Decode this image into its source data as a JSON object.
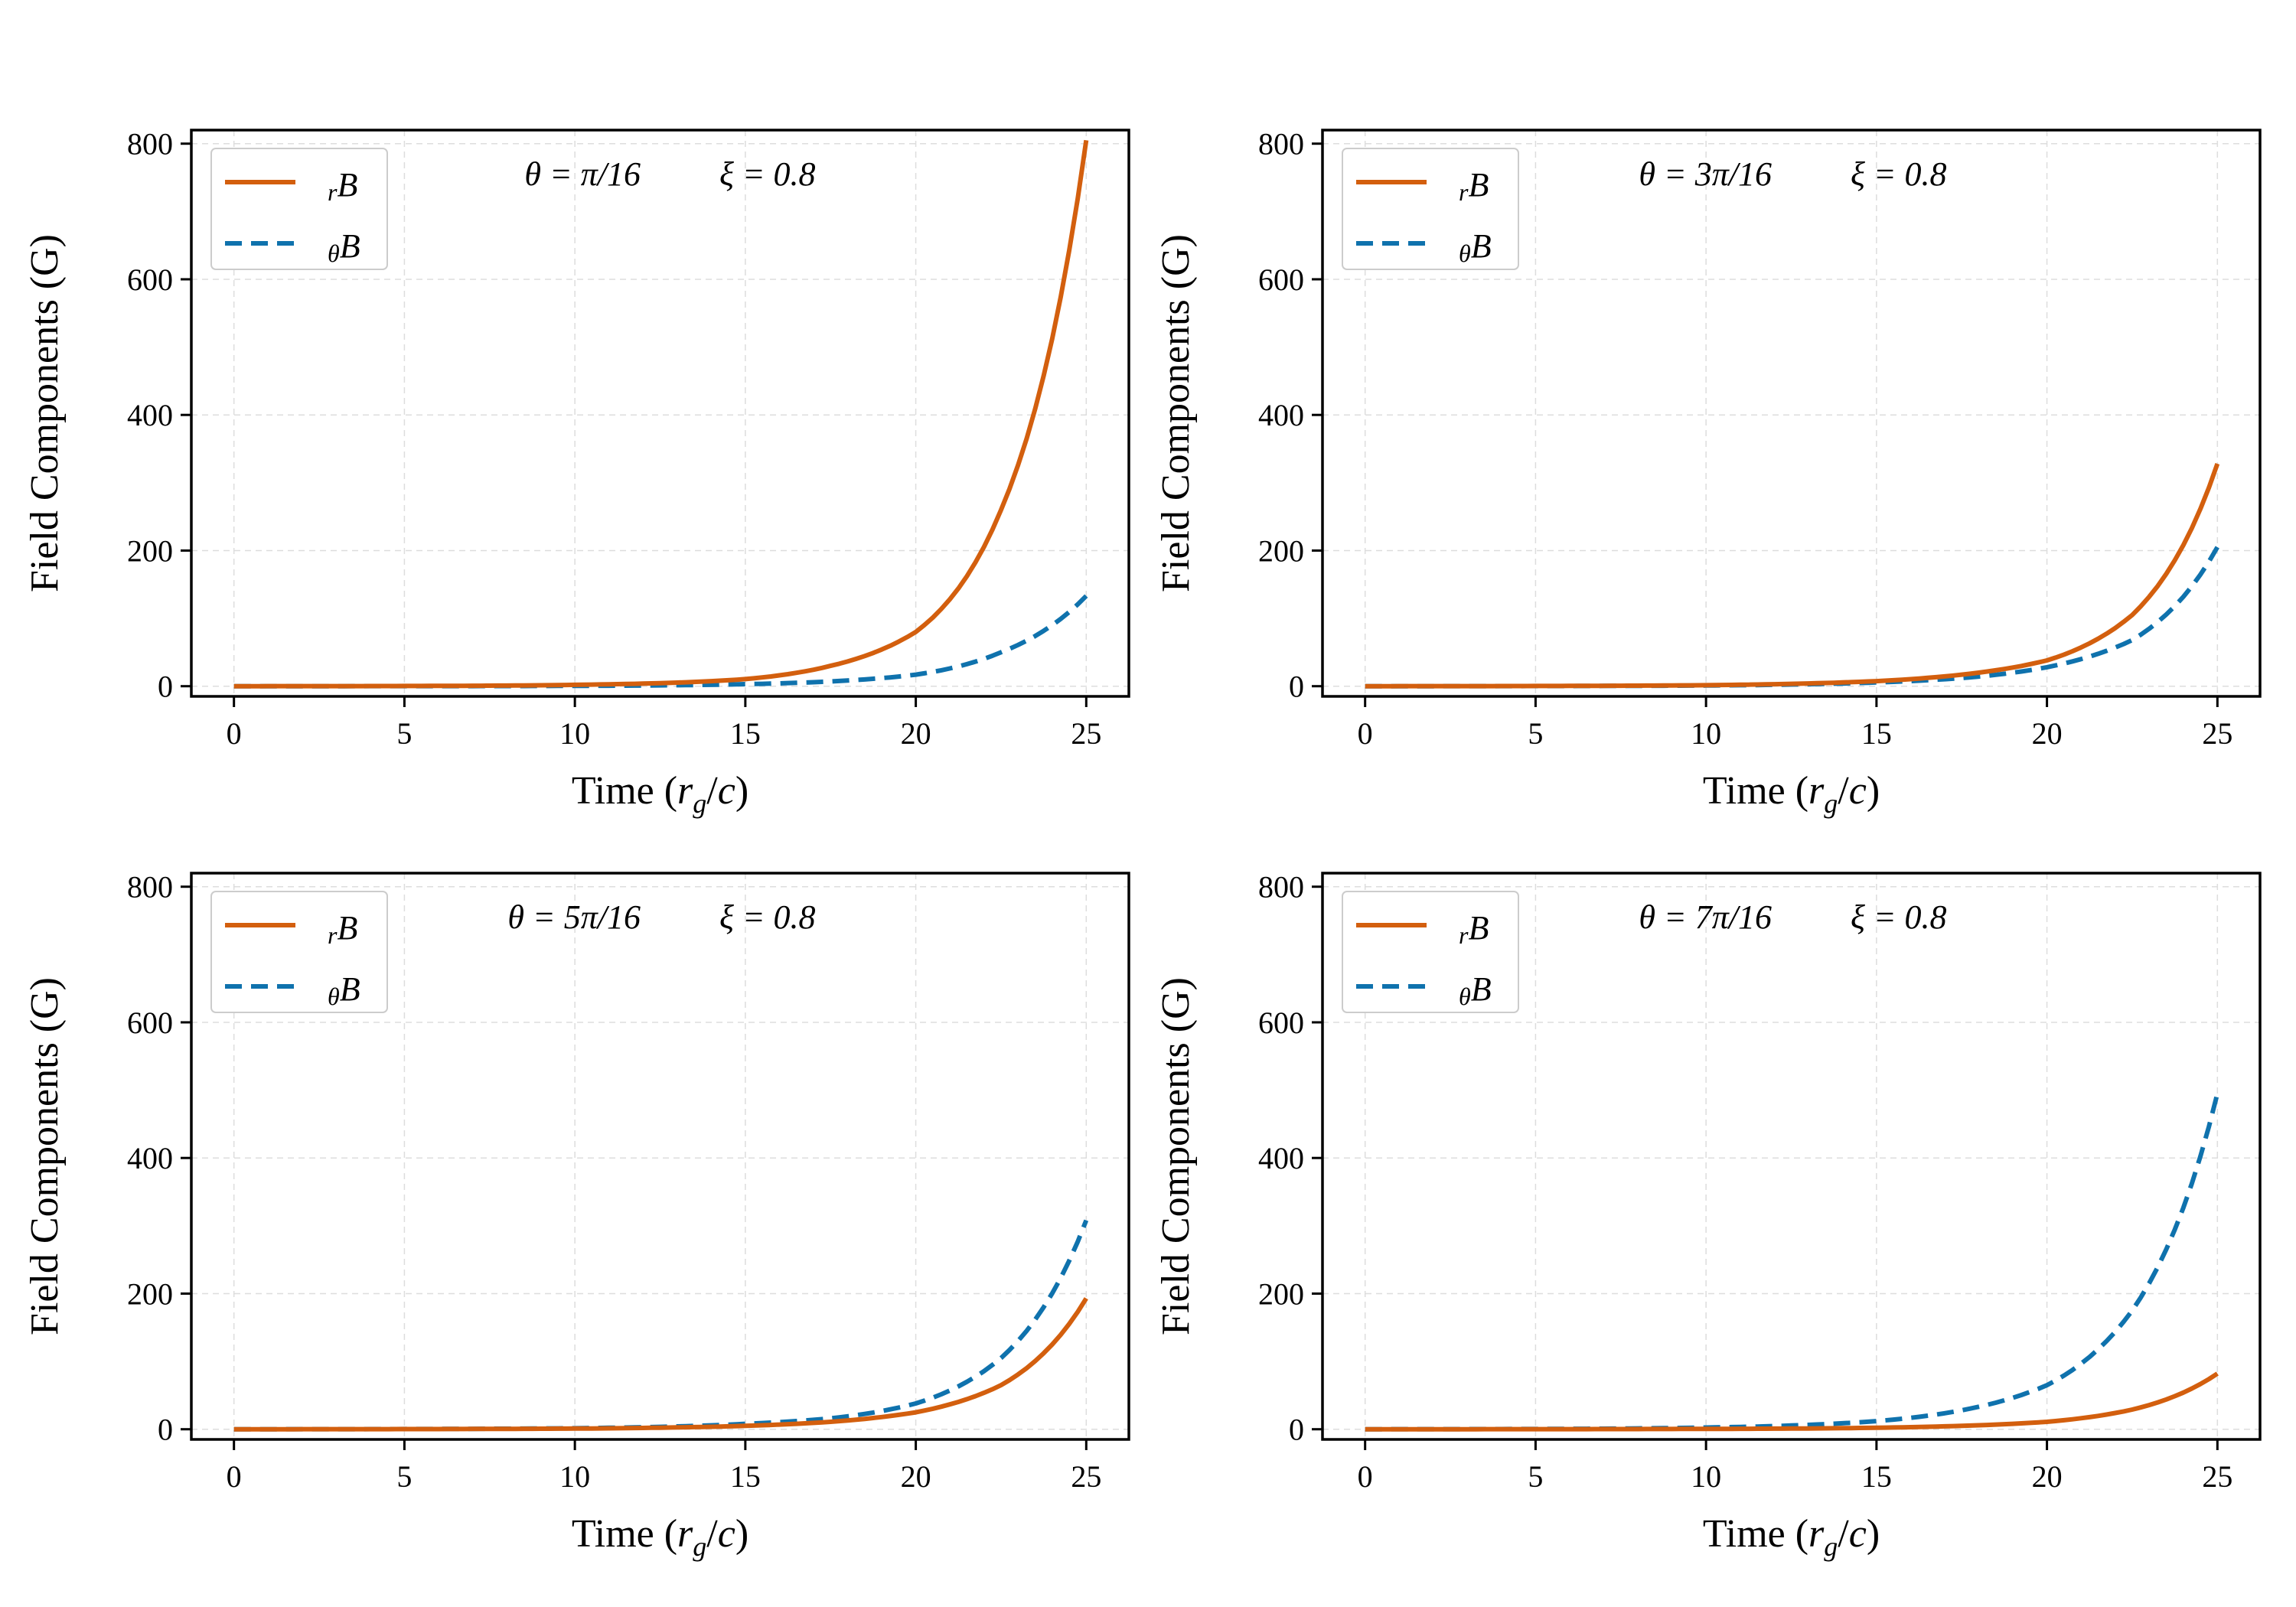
{
  "colors": {
    "rB": "#d35f0e",
    "thetaB": "#0f72ad"
  },
  "chart_data": [
    {
      "type": "line",
      "xlabel_main": "Time (",
      "xlabel_r": "r",
      "xlabel_g": "g",
      "xlabel_slash": "/",
      "xlabel_c": "c",
      "xlabel_close": ")",
      "ylabel": "Field Components (G)",
      "xlim": [
        -1.25,
        26.25
      ],
      "ylim": [
        -15,
        820
      ],
      "xticks": [
        0,
        5,
        10,
        15,
        20,
        25
      ],
      "yticks": [
        0,
        200,
        400,
        600,
        800
      ],
      "annotation_theta": "θ = π/16",
      "annotation_xi": "ξ = 0.8",
      "legend": [
        {
          "sub": "r",
          "main": "B",
          "style": "solid"
        },
        {
          "sub": "θ",
          "main": "B",
          "style": "dashed"
        }
      ],
      "x": [
        0,
        2.5,
        5,
        7.5,
        10,
        12.5,
        15,
        17.5,
        20,
        22.5,
        25
      ],
      "series": [
        {
          "name": "rB",
          "values": [
            0.05,
            0.1,
            0.3,
            0.8,
            2.0,
            4.5,
            10.5,
            30,
            80,
            260,
            805
          ]
        },
        {
          "name": "thetaB",
          "values": [
            0.02,
            0.05,
            0.1,
            0.2,
            0.5,
            1.2,
            3,
            7,
            17,
            50,
            133
          ]
        }
      ]
    },
    {
      "type": "line",
      "xlabel_main": "Time (",
      "xlabel_r": "r",
      "xlabel_g": "g",
      "xlabel_slash": "/",
      "xlabel_c": "c",
      "xlabel_close": ")",
      "ylabel": "Field Components (G)",
      "xlim": [
        -1.25,
        26.25
      ],
      "ylim": [
        -15,
        820
      ],
      "xticks": [
        0,
        5,
        10,
        15,
        20,
        25
      ],
      "yticks": [
        0,
        200,
        400,
        600,
        800
      ],
      "annotation_theta": "θ = 3π/16",
      "annotation_xi": "ξ = 0.8",
      "legend": [
        {
          "sub": "r",
          "main": "B",
          "style": "solid"
        },
        {
          "sub": "θ",
          "main": "B",
          "style": "dashed"
        }
      ],
      "x": [
        0,
        2.5,
        5,
        7.5,
        10,
        12.5,
        15,
        17.5,
        20,
        22.5,
        25
      ],
      "series": [
        {
          "name": "rB",
          "values": [
            0.05,
            0.1,
            0.3,
            0.7,
            1.5,
            3.5,
            7.5,
            17,
            38,
            105,
            328
          ]
        },
        {
          "name": "thetaB",
          "values": [
            0.03,
            0.07,
            0.2,
            0.5,
            1.0,
            2.5,
            5.5,
            12,
            28,
            68,
            205
          ]
        }
      ]
    },
    {
      "type": "line",
      "xlabel_main": "Time (",
      "xlabel_r": "r",
      "xlabel_g": "g",
      "xlabel_slash": "/",
      "xlabel_c": "c",
      "xlabel_close": ")",
      "ylabel": "Field Components (G)",
      "xlim": [
        -1.25,
        26.25
      ],
      "ylim": [
        -15,
        820
      ],
      "xticks": [
        0,
        5,
        10,
        15,
        20,
        25
      ],
      "yticks": [
        0,
        200,
        400,
        600,
        800
      ],
      "annotation_theta": "θ = 5π/16",
      "annotation_xi": "ξ = 0.8",
      "legend": [
        {
          "sub": "r",
          "main": "B",
          "style": "solid"
        },
        {
          "sub": "θ",
          "main": "B",
          "style": "dashed"
        }
      ],
      "x": [
        0,
        2.5,
        5,
        7.5,
        10,
        12.5,
        15,
        17.5,
        20,
        22.5,
        25
      ],
      "series": [
        {
          "name": "rB",
          "values": [
            0.03,
            0.08,
            0.2,
            0.5,
            1.0,
            2.3,
            5,
            11,
            25,
            65,
            193
          ]
        },
        {
          "name": "thetaB",
          "values": [
            0.04,
            0.1,
            0.3,
            0.7,
            1.5,
            3.5,
            8,
            16,
            38,
            105,
            308
          ]
        }
      ]
    },
    {
      "type": "line",
      "xlabel_main": "Time (",
      "xlabel_r": "r",
      "xlabel_g": "g",
      "xlabel_slash": "/",
      "xlabel_c": "c",
      "xlabel_close": ")",
      "ylabel": "Field Components (G)",
      "xlim": [
        -1.25,
        26.25
      ],
      "ylim": [
        -15,
        820
      ],
      "xticks": [
        0,
        5,
        10,
        15,
        20,
        25
      ],
      "yticks": [
        0,
        200,
        400,
        600,
        800
      ],
      "annotation_theta": "θ = 7π/16",
      "annotation_xi": "ξ = 0.8",
      "legend": [
        {
          "sub": "r",
          "main": "B",
          "style": "solid"
        },
        {
          "sub": "θ",
          "main": "B",
          "style": "dashed"
        }
      ],
      "x": [
        0,
        2.5,
        5,
        7.5,
        10,
        12.5,
        15,
        17.5,
        20,
        22.5,
        25
      ],
      "series": [
        {
          "name": "rB",
          "values": [
            0.02,
            0.05,
            0.1,
            0.25,
            0.5,
            1.0,
            2.2,
            5,
            11,
            29,
            82
          ]
        },
        {
          "name": "thetaB",
          "values": [
            0.05,
            0.15,
            0.4,
            1.0,
            2.5,
            5.5,
            12,
            28,
            65,
            175,
            495
          ]
        }
      ]
    }
  ]
}
